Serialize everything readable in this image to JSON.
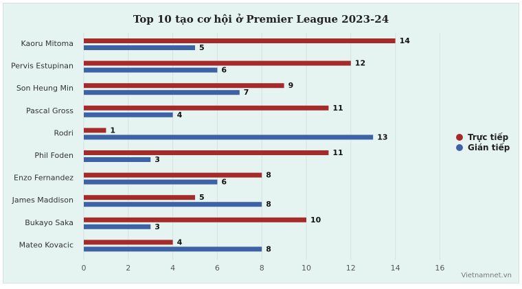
{
  "chart_data": {
    "type": "bar",
    "orientation": "horizontal",
    "title": "Top 10 tạo cơ hội ở Premier League 2023-24",
    "categories": [
      "Kaoru Mitoma",
      "Pervis Estupinan",
      "Son Heung Min",
      "Pascal Gross",
      "Rodri",
      "Phil Foden",
      "Enzo Fernandez",
      "James Maddison",
      "Bukayo Saka",
      "Mateo Kovacic"
    ],
    "series": [
      {
        "name": "Trực tiếp",
        "color": "#a52a2a",
        "values": [
          14,
          12,
          9,
          11,
          1,
          11,
          8,
          5,
          10,
          4
        ]
      },
      {
        "name": "Gián tiếp",
        "color": "#3d62a6",
        "values": [
          5,
          6,
          7,
          4,
          13,
          3,
          6,
          8,
          3,
          8
        ]
      }
    ],
    "xlim": [
      0,
      16
    ],
    "xticks": [
      0,
      2,
      4,
      6,
      8,
      10,
      12,
      14,
      16
    ],
    "xlabel": "",
    "ylabel": "",
    "grid": true,
    "legend": "right",
    "data_labels": true
  },
  "credit": "Vietnamnet.vn"
}
